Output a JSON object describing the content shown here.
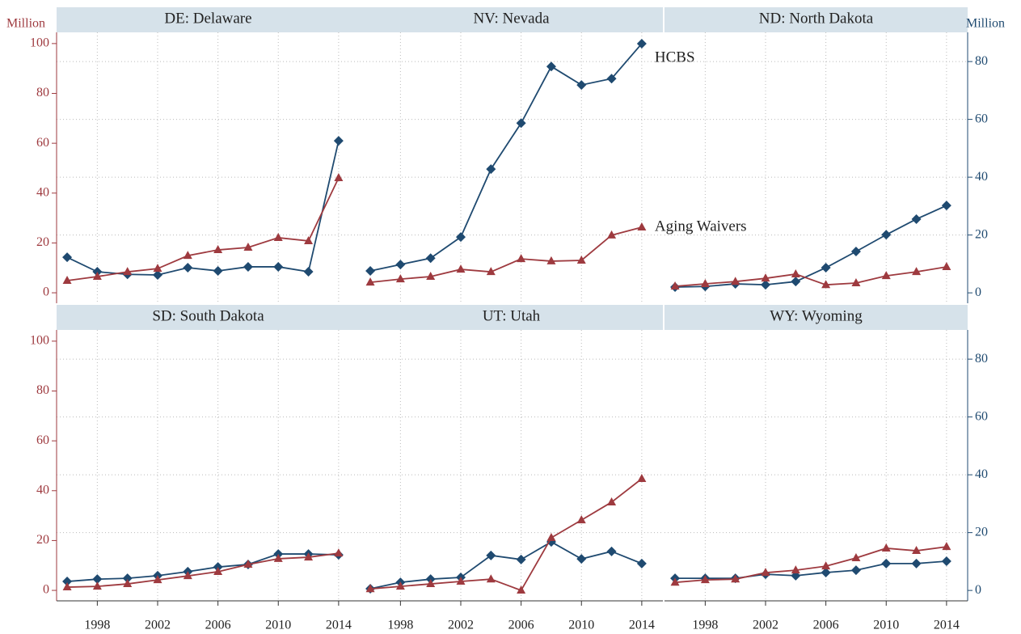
{
  "chart_data": [
    {
      "type": "line",
      "title": "DE: Delaware",
      "ylabel": "Million",
      "x": [
        1996,
        1998,
        2000,
        2002,
        2004,
        2006,
        2008,
        2010,
        2012,
        2014
      ],
      "series": [
        {
          "color": "#1f4a70",
          "marker": "diamond",
          "axis": "y2",
          "values": [
            12.3,
            7.3,
            6.4,
            6.2,
            8.7,
            7.6,
            9.0,
            9.0,
            7.3,
            52.6
          ]
        },
        {
          "color": "#9e3a3f",
          "marker": "triangle",
          "values": [
            4.9,
            6.5,
            8.4,
            9.7,
            14.9,
            17.2,
            18.2,
            22.1,
            20.8,
            46.1
          ]
        }
      ],
      "xlim": [
        1995.3,
        2015.4
      ],
      "xticks": [
        1998,
        2002,
        2006,
        2010,
        2014
      ],
      "ylim": [
        -4.2,
        104.5
      ],
      "yticks": [
        0,
        20,
        40,
        60,
        80,
        100
      ],
      "y2lim": [
        -3.6,
        90.1
      ],
      "y2ticks": [
        0,
        20,
        40,
        60,
        80
      ],
      "grid": true
    },
    {
      "type": "line",
      "title": "NV: Nevada",
      "x": [
        1996,
        1998,
        2000,
        2002,
        2004,
        2006,
        2008,
        2010,
        2012,
        2014
      ],
      "series": [
        {
          "name": "HCBS",
          "color": "#1f4a70",
          "marker": "diamond",
          "axis": "y2",
          "values": [
            7.6,
            9.8,
            12.0,
            19.3,
            42.8,
            58.7,
            78.3,
            71.9,
            74.1,
            86.2
          ]
        },
        {
          "name": "Aging Waivers",
          "color": "#9e3a3f",
          "marker": "triangle",
          "values": [
            4.2,
            5.5,
            6.5,
            9.4,
            8.4,
            13.6,
            12.7,
            13.0,
            23.1,
            26.3
          ]
        }
      ],
      "xlim": [
        1995.3,
        2015.4
      ],
      "xticks": [
        1998,
        2002,
        2006,
        2010,
        2014
      ],
      "ylim": [
        -4.2,
        104.5
      ],
      "y2lim": [
        -3.6,
        90.1
      ],
      "y2ticks": [
        0,
        20,
        40,
        60,
        80
      ],
      "grid": true
    },
    {
      "type": "line",
      "title": "ND: North Dakota",
      "y2label": "Million",
      "x": [
        1996,
        1998,
        2000,
        2002,
        2004,
        2006,
        2008,
        2010,
        2012,
        2014
      ],
      "series": [
        {
          "color": "#1f4a70",
          "marker": "diamond",
          "axis": "y2",
          "values": [
            2.0,
            2.2,
            3.1,
            2.8,
            3.9,
            8.7,
            14.3,
            20.1,
            25.5,
            30.2
          ]
        },
        {
          "color": "#9e3a3f",
          "marker": "triangle",
          "values": [
            2.6,
            3.6,
            4.5,
            5.8,
            7.5,
            3.2,
            3.9,
            6.8,
            8.4,
            10.4
          ]
        }
      ],
      "xlim": [
        1995.3,
        2015.4
      ],
      "xticks": [
        1998,
        2002,
        2006,
        2010,
        2014
      ],
      "ylim": [
        -4.2,
        104.5
      ],
      "y2lim": [
        -3.6,
        90.1
      ],
      "y2ticks": [
        0,
        20,
        40,
        60,
        80
      ],
      "grid": true
    },
    {
      "type": "line",
      "title": "SD: South Dakota",
      "x": [
        1996,
        1998,
        2000,
        2002,
        2004,
        2006,
        2008,
        2010,
        2012,
        2014
      ],
      "series": [
        {
          "color": "#1f4a70",
          "marker": "diamond",
          "axis": "y2",
          "values": [
            3.1,
            3.9,
            4.2,
            5.1,
            6.5,
            8.1,
            9.0,
            12.6,
            12.6,
            12.3
          ]
        },
        {
          "color": "#9e3a3f",
          "marker": "triangle",
          "values": [
            1.3,
            1.6,
            2.6,
            4.2,
            5.8,
            7.5,
            10.4,
            12.7,
            13.3,
            14.9
          ]
        }
      ],
      "xlim": [
        1995.3,
        2015.4
      ],
      "xticks": [
        1998,
        2002,
        2006,
        2010,
        2014
      ],
      "ylim": [
        -4.2,
        104.5
      ],
      "yticks": [
        0,
        20,
        40,
        60,
        80,
        100
      ],
      "y2lim": [
        -3.6,
        90.1
      ],
      "y2ticks": [
        0,
        20,
        40,
        60,
        80
      ],
      "grid": true
    },
    {
      "type": "line",
      "title": "UT: Utah",
      "x": [
        1996,
        1998,
        2000,
        2002,
        2004,
        2006,
        2008,
        2010,
        2012,
        2014
      ],
      "series": [
        {
          "color": "#1f4a70",
          "marker": "diamond",
          "axis": "y2",
          "values": [
            0.6,
            2.8,
            3.9,
            4.5,
            12.1,
            10.7,
            16.8,
            10.9,
            13.5,
            9.3
          ]
        },
        {
          "color": "#9e3a3f",
          "marker": "triangle",
          "values": [
            0.6,
            1.6,
            2.6,
            3.6,
            4.5,
            0,
            21.1,
            28.2,
            35.4,
            44.8
          ]
        }
      ],
      "xlim": [
        1995.3,
        2015.4
      ],
      "xticks": [
        1998,
        2002,
        2006,
        2010,
        2014
      ],
      "ylim": [
        -4.2,
        104.5
      ],
      "y2lim": [
        -3.6,
        90.1
      ],
      "y2ticks": [
        0,
        20,
        40,
        60,
        80
      ],
      "grid": true
    },
    {
      "type": "line",
      "title": "WY: Wyoming",
      "x": [
        1996,
        1998,
        2000,
        2002,
        2004,
        2006,
        2008,
        2010,
        2012,
        2014
      ],
      "series": [
        {
          "color": "#1f4a70",
          "marker": "diamond",
          "axis": "y2",
          "values": [
            4.2,
            4.2,
            4.2,
            5.6,
            5.1,
            6.2,
            7.0,
            9.3,
            9.3,
            10.1
          ]
        },
        {
          "color": "#9e3a3f",
          "marker": "triangle",
          "values": [
            3.2,
            4.2,
            4.5,
            7.1,
            8.1,
            9.7,
            13.0,
            16.9,
            15.9,
            17.5
          ]
        }
      ],
      "xlim": [
        1995.3,
        2015.4
      ],
      "xticks": [
        1998,
        2002,
        2006,
        2010,
        2014
      ],
      "ylim": [
        -4.2,
        104.5
      ],
      "y2lim": [
        -3.6,
        90.1
      ],
      "y2ticks": [
        0,
        20,
        40,
        60,
        80
      ],
      "grid": true
    }
  ]
}
